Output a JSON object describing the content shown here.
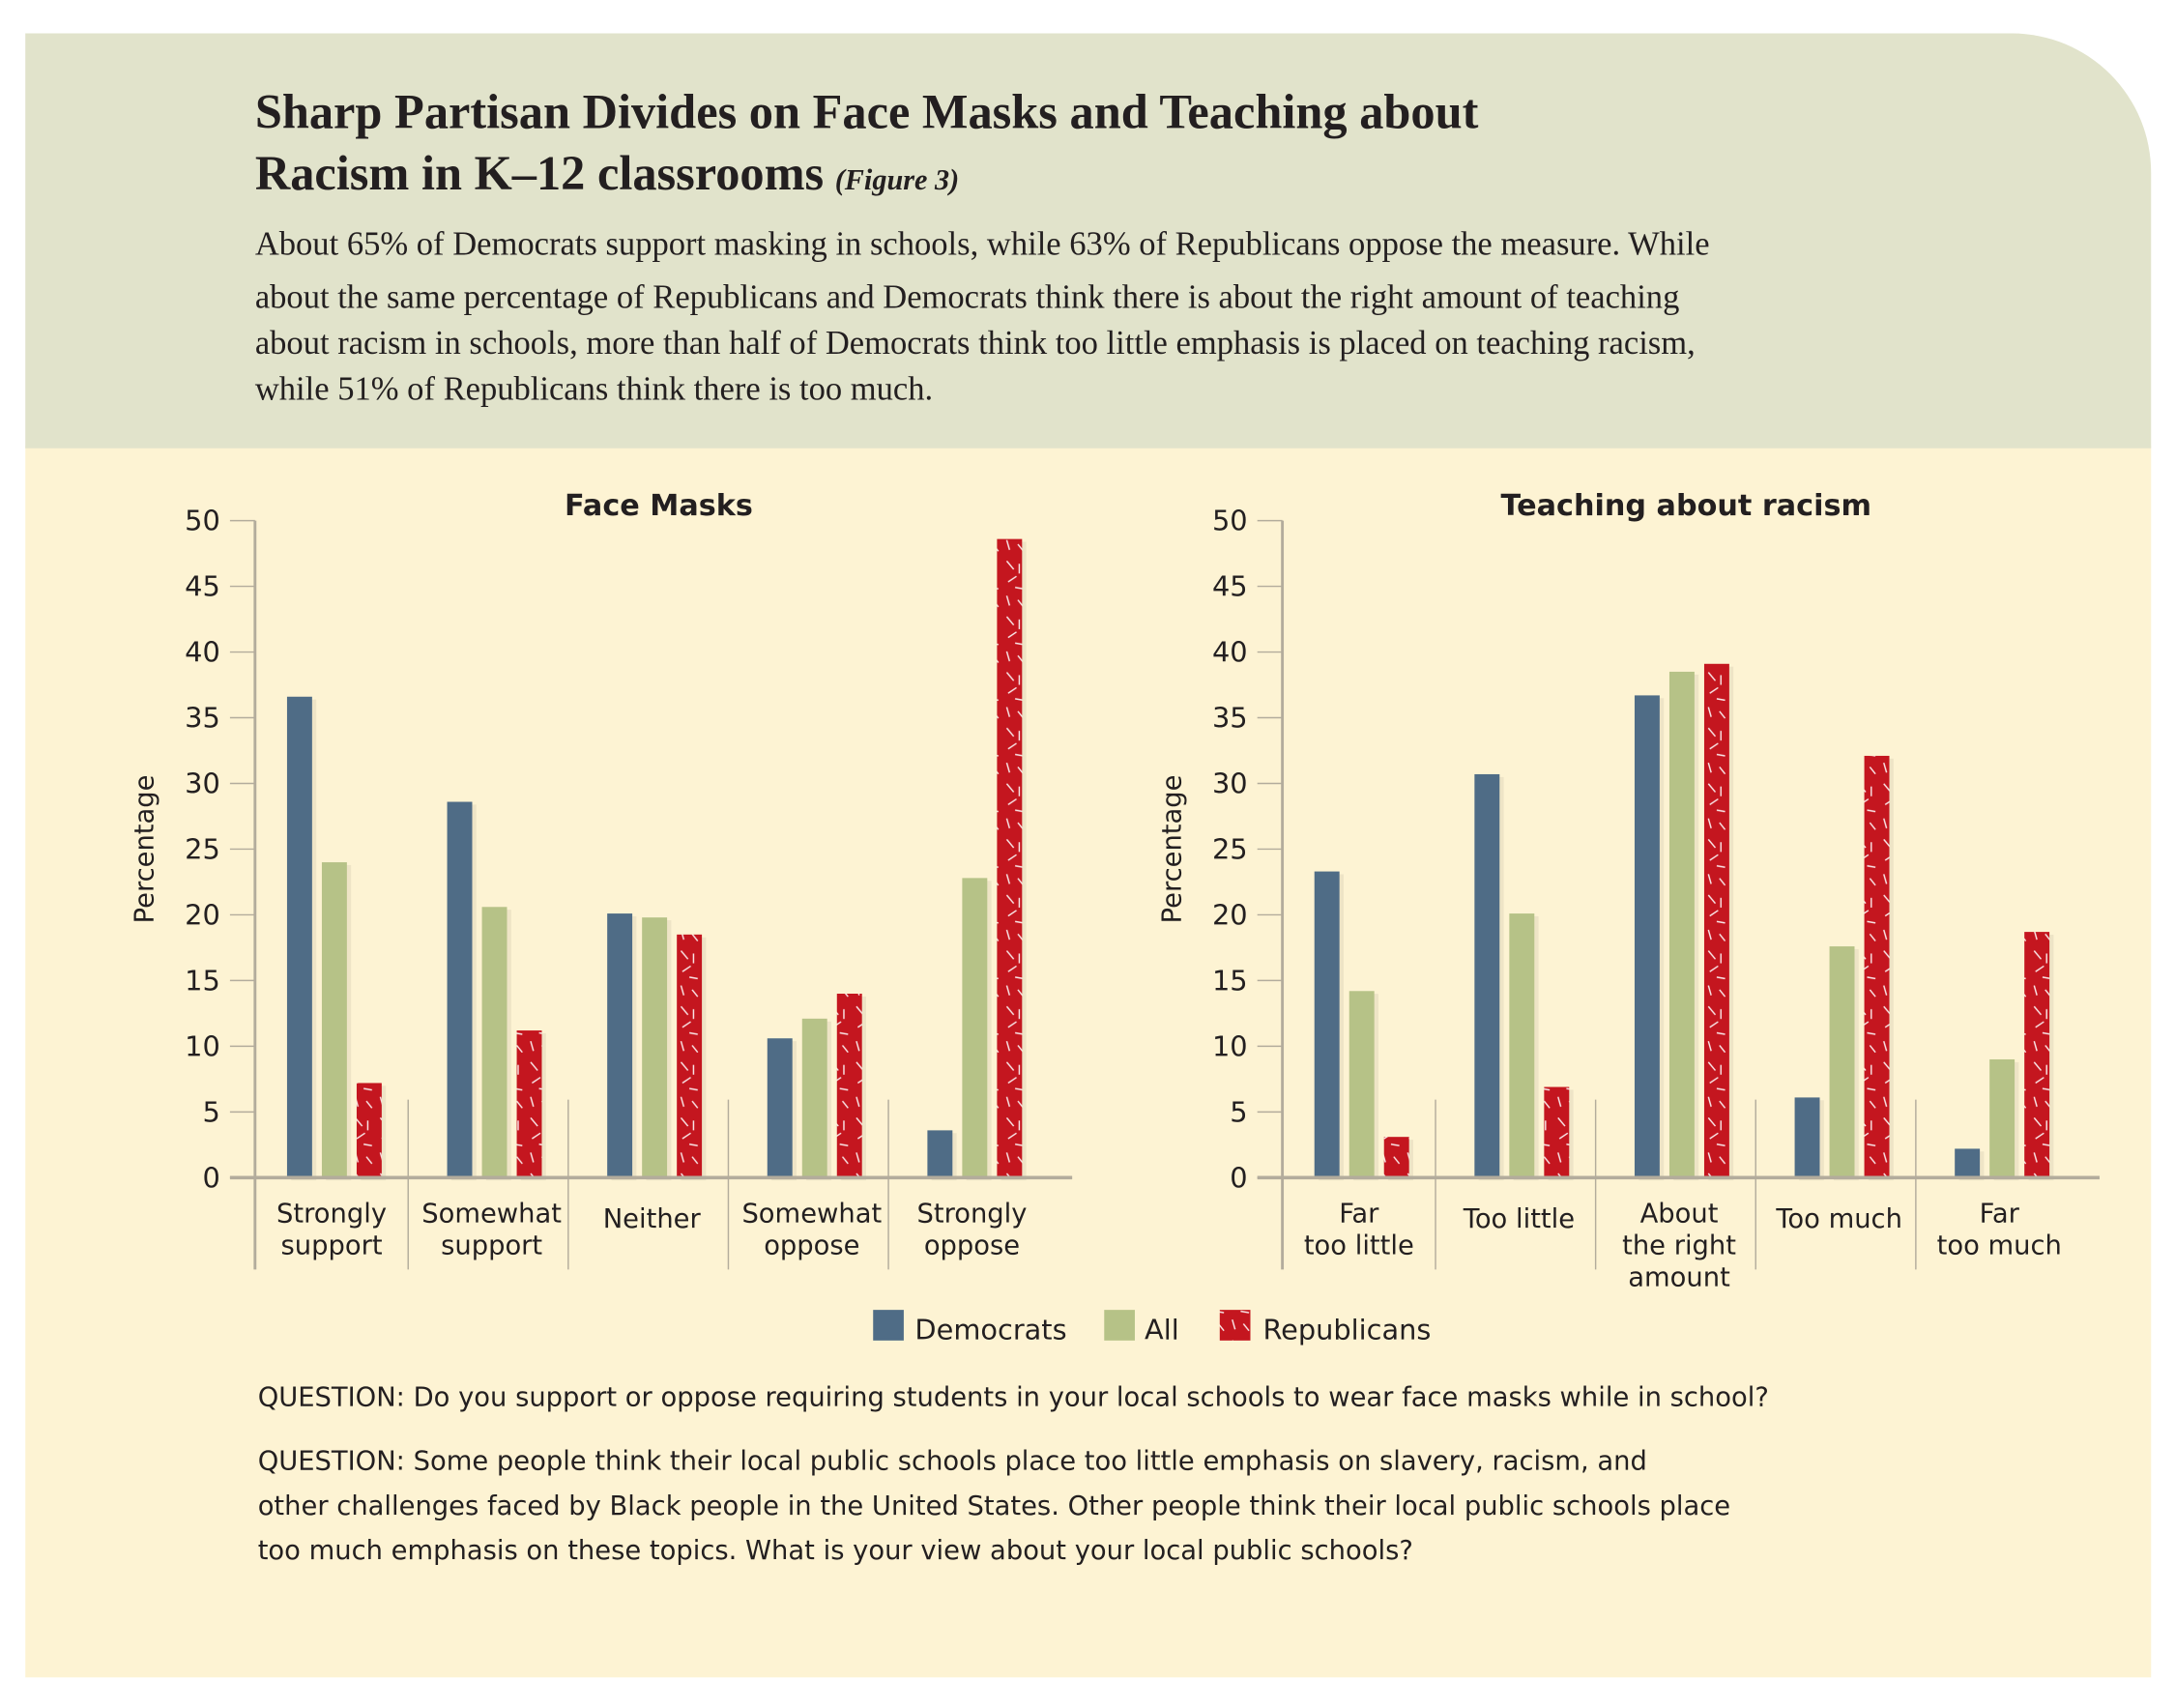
{
  "header": {
    "title_line1": "Sharp Partisan Divides on Face Masks and Teaching about",
    "title_line2": "Racism in K–12 classrooms",
    "figure_ref": "(Figure 3)",
    "body_lines": [
      "About 65% of Democrats support masking in schools, while 63% of Republicans oppose the measure. While",
      "about the same percentage of Republicans and Democrats think there is about the right amount of teaching",
      "about racism in schools, more than half of Democrats think too little emphasis is placed on teaching racism,",
      "while 51% of Republicans think there is too much."
    ]
  },
  "colors": {
    "header_bg": "#E1E3CB",
    "panel_bg": "#FDF3D3",
    "democrats": "#4F6C86",
    "all": "#B6C287",
    "republicans": "#C4161F",
    "axis": "#B3AC9C"
  },
  "legend": {
    "placement": "bottom-center",
    "items": [
      {
        "label": "Democrats",
        "color": "#4F6C86"
      },
      {
        "label": "All",
        "color": "#B6C287"
      },
      {
        "label": "Republicans",
        "color": "#C4161F"
      }
    ]
  },
  "chart_data": [
    {
      "type": "bar",
      "title": "Face Masks",
      "xlabel": "",
      "ylabel": "Percentage",
      "ylim": [
        0,
        50
      ],
      "yticks": [
        "0",
        "5",
        "10",
        "15",
        "20",
        "25",
        "30",
        "35",
        "40",
        "45",
        "50"
      ],
      "categories": [
        [
          "Strongly",
          "support"
        ],
        [
          "Somewhat",
          "support"
        ],
        [
          "Neither"
        ],
        [
          "Somewhat",
          "oppose"
        ],
        [
          "Strongly",
          "oppose"
        ]
      ],
      "series": [
        {
          "name": "Democrats",
          "values": [
            36.6,
            28.6,
            20.1,
            10.6,
            3.6
          ]
        },
        {
          "name": "All",
          "values": [
            24.0,
            20.6,
            19.8,
            12.1,
            22.8
          ]
        },
        {
          "name": "Republicans",
          "values": [
            7.2,
            11.2,
            18.5,
            14.0,
            48.6
          ]
        }
      ]
    },
    {
      "type": "bar",
      "title": "Teaching about racism",
      "xlabel": "",
      "ylabel": "Percentage",
      "ylim": [
        0,
        50
      ],
      "yticks": [
        "0",
        "5",
        "10",
        "15",
        "20",
        "25",
        "30",
        "35",
        "40",
        "45",
        "50"
      ],
      "categories": [
        [
          "Far",
          "too little"
        ],
        [
          "Too little"
        ],
        [
          "About",
          "the right",
          "amount"
        ],
        [
          "Too much"
        ],
        [
          "Far",
          "too much"
        ]
      ],
      "series": [
        {
          "name": "Democrats",
          "values": [
            23.3,
            30.7,
            36.7,
            6.1,
            2.2
          ]
        },
        {
          "name": "All",
          "values": [
            14.2,
            20.1,
            38.5,
            17.6,
            9.0
          ]
        },
        {
          "name": "Republicans",
          "values": [
            3.1,
            6.9,
            39.1,
            32.1,
            18.7
          ]
        }
      ]
    }
  ],
  "questions": [
    [
      "QUESTION: Do you support or oppose requiring students in your local schools to wear face masks while in school?"
    ],
    [
      "QUESTION: Some people think their local public schools place too little emphasis on slavery, racism, and",
      "other challenges faced by Black people in the United States. Other people think their local public schools place",
      "too much emphasis on these topics. What is your view about your local public schools?"
    ]
  ]
}
